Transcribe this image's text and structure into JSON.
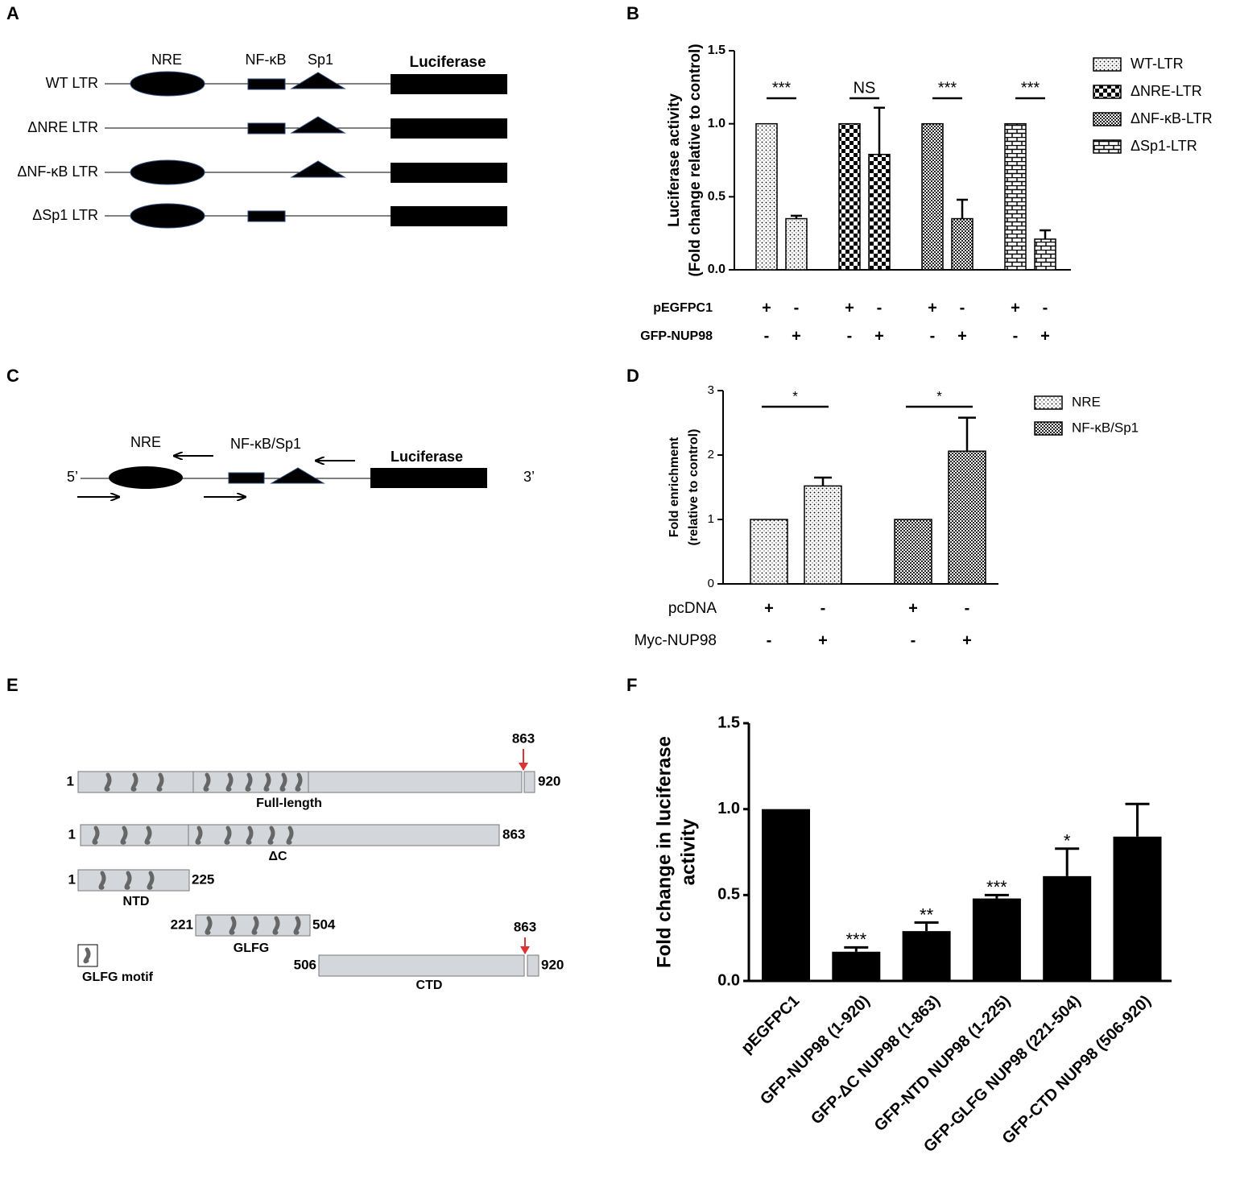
{
  "panel_labels": [
    "A",
    "B",
    "C",
    "D",
    "E",
    "F"
  ],
  "ltr_diagram": {
    "headers": [
      "NRE",
      "NF-κB",
      "Sp1",
      "Luciferase"
    ],
    "rows": [
      "WT LTR",
      "ΔNRE LTR",
      "ΔNF-κB LTR",
      "ΔSp1 LTR"
    ]
  },
  "primer_diagram": {
    "labels": [
      "NRE",
      "NF-κB/Sp1",
      "Luciferase"
    ],
    "ends": [
      "5’",
      "3’"
    ]
  },
  "domain_diagram": {
    "constructs": [
      {
        "label": "Full-length",
        "start": 1,
        "end": 920,
        "site": 863
      },
      {
        "label": "ΔC",
        "start": 1,
        "end": 863
      },
      {
        "label": "NTD",
        "start": 1,
        "end": 225
      },
      {
        "label": "GLFG",
        "start": 221,
        "end": 504
      },
      {
        "label": "CTD",
        "start": 506,
        "end": 920,
        "site": 863
      }
    ],
    "legend": "GLFG motif"
  },
  "chart_data": [
    {
      "type": "bar",
      "y_label": [
        "Luciferase activity",
        "(Fold change relative to control)"
      ],
      "ylim": [
        0,
        1.5
      ],
      "yticks": [
        {
          "value": 0,
          "label": "0.0"
        },
        {
          "value": 0.5,
          "label": "0.5"
        },
        {
          "value": 1,
          "label": "1.0"
        },
        {
          "value": 1.5,
          "label": "1.5"
        }
      ],
      "conditions": [
        {
          "name": "pEGFPC1",
          "signs": [
            "+",
            "-"
          ]
        },
        {
          "name": "GFP-NUP98",
          "signs": [
            "-",
            "+"
          ]
        }
      ],
      "series": [
        {
          "name": "WT-LTR",
          "pattern": "dots",
          "values": [
            1,
            0.35
          ],
          "errors": [
            null,
            0.02
          ],
          "significance": "***"
        },
        {
          "name": "ΔNRE-LTR",
          "pattern": "checker",
          "values": [
            1,
            0.79
          ],
          "errors": [
            null,
            0.32
          ],
          "significance": "NS"
        },
        {
          "name": "ΔNF-κB-LTR",
          "pattern": "fine-checker",
          "values": [
            1,
            0.35
          ],
          "errors": [
            null,
            0.13
          ],
          "significance": "***"
        },
        {
          "name": "ΔSp1-LTR",
          "pattern": "brick",
          "values": [
            1,
            0.21
          ],
          "errors": [
            null,
            0.06
          ],
          "significance": "***"
        }
      ]
    },
    {
      "type": "bar",
      "y_label": [
        "Fold enrichment",
        "(relative to control)"
      ],
      "ylim": [
        0,
        3
      ],
      "yticks": [
        0,
        1,
        2,
        3
      ],
      "conditions": [
        {
          "name": "pcDNA",
          "signs": [
            "+",
            "-"
          ]
        },
        {
          "name": "Myc-NUP98",
          "signs": [
            "-",
            "+"
          ]
        }
      ],
      "series": [
        {
          "name": "NRE",
          "pattern": "dots",
          "values": [
            1,
            1.52
          ],
          "errors": [
            null,
            0.13
          ],
          "significance": "*"
        },
        {
          "name": "NF-κB/Sp1",
          "pattern": "fine-checker",
          "values": [
            1,
            2.06
          ],
          "errors": [
            null,
            0.52
          ],
          "significance": "*"
        }
      ]
    },
    {
      "type": "bar",
      "y_label": [
        "Fold change in luciferase",
        "activity"
      ],
      "ylim": [
        0,
        1.5
      ],
      "yticks": [
        {
          "value": 0,
          "label": "0.0"
        },
        {
          "value": 0.5,
          "label": "0.5"
        },
        {
          "value": 1,
          "label": "1.0"
        },
        {
          "value": 1.5,
          "label": "1.5"
        }
      ],
      "categories": [
        "pEGFPC1",
        "GFP-NUP98 (1-920)",
        "GFP-ΔC NUP98 (1-863)",
        "GFP-NTD NUP98 (1-225)",
        "GFP-GLFG NUP98 (221-504)",
        "GFP-CTD NUP98 (506-920)"
      ],
      "values": [
        1,
        0.17,
        0.29,
        0.48,
        0.61,
        0.84
      ],
      "errors": [
        null,
        0.025,
        0.05,
        0.02,
        0.16,
        0.19
      ],
      "significance": [
        null,
        "***",
        "**",
        "***",
        "*",
        null
      ],
      "color": "#000000"
    }
  ]
}
